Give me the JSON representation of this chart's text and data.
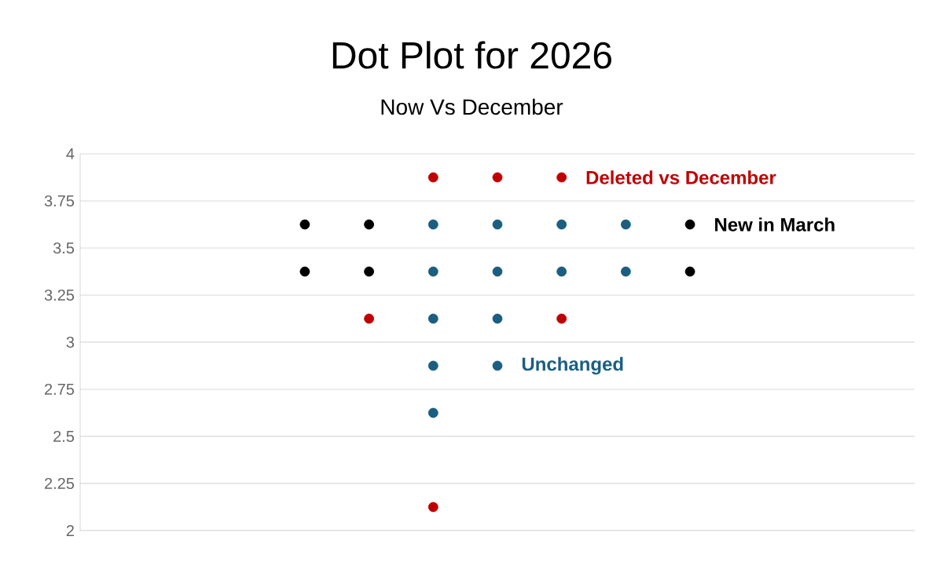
{
  "chart_data": {
    "type": "scatter",
    "title": "Dot Plot for 2026",
    "subtitle": "Now Vs December",
    "categories": [
      null,
      null,
      null,
      null,
      null,
      null,
      null,
      null,
      null,
      null,
      null,
      null,
      null
    ],
    "series": [
      {
        "name": "Deleted vs December",
        "color": "#c00000",
        "values": [
          null,
          null,
          null,
          null,
          null,
          3.875,
          3.875,
          3.875,
          null,
          null,
          null,
          null,
          null
        ]
      },
      {
        "color": "#c00000",
        "values": [
          null,
          null,
          null,
          null,
          3.125,
          null,
          null,
          3.125,
          null,
          null,
          null,
          null,
          null
        ]
      },
      {
        "color": "#c00000",
        "values": [
          null,
          null,
          null,
          null,
          null,
          2.125,
          null,
          null,
          null,
          null,
          null,
          null,
          null
        ]
      },
      {
        "name": "New in March",
        "color": "#000000",
        "values": [
          null,
          null,
          null,
          3.625,
          3.625,
          null,
          null,
          null,
          null,
          3.625,
          null,
          null,
          null
        ]
      },
      {
        "color": "#000000",
        "values": [
          null,
          null,
          null,
          3.375,
          3.375,
          null,
          null,
          null,
          null,
          3.375,
          null,
          null,
          null
        ]
      },
      {
        "color": "#1b5e80",
        "values": [
          null,
          null,
          null,
          null,
          null,
          3.625,
          3.625,
          3.625,
          3.625,
          null,
          null,
          null,
          null
        ]
      },
      {
        "color": "#1b5e80",
        "values": [
          null,
          null,
          null,
          null,
          null,
          3.375,
          3.375,
          3.375,
          3.375,
          null,
          null,
          null,
          null
        ]
      },
      {
        "color": "#1b5e80",
        "values": [
          null,
          null,
          null,
          null,
          null,
          3.125,
          3.125,
          null,
          null,
          null,
          null,
          null,
          null
        ]
      },
      {
        "name": "Unchanged",
        "color": "#1b5e80",
        "values": [
          null,
          null,
          null,
          null,
          null,
          2.875,
          2.875,
          null,
          null,
          null,
          null,
          null,
          null
        ]
      },
      {
        "color": "#1b5e80",
        "values": [
          null,
          null,
          null,
          null,
          null,
          2.625,
          null,
          null,
          null,
          null,
          null,
          null,
          null
        ]
      }
    ],
    "ylim": [
      2,
      4
    ],
    "yticks": [
      2,
      2.25,
      2.5,
      2.75,
      3,
      3.25,
      3.5,
      3.75,
      4
    ],
    "grid": "y",
    "tick_labels": "y"
  }
}
